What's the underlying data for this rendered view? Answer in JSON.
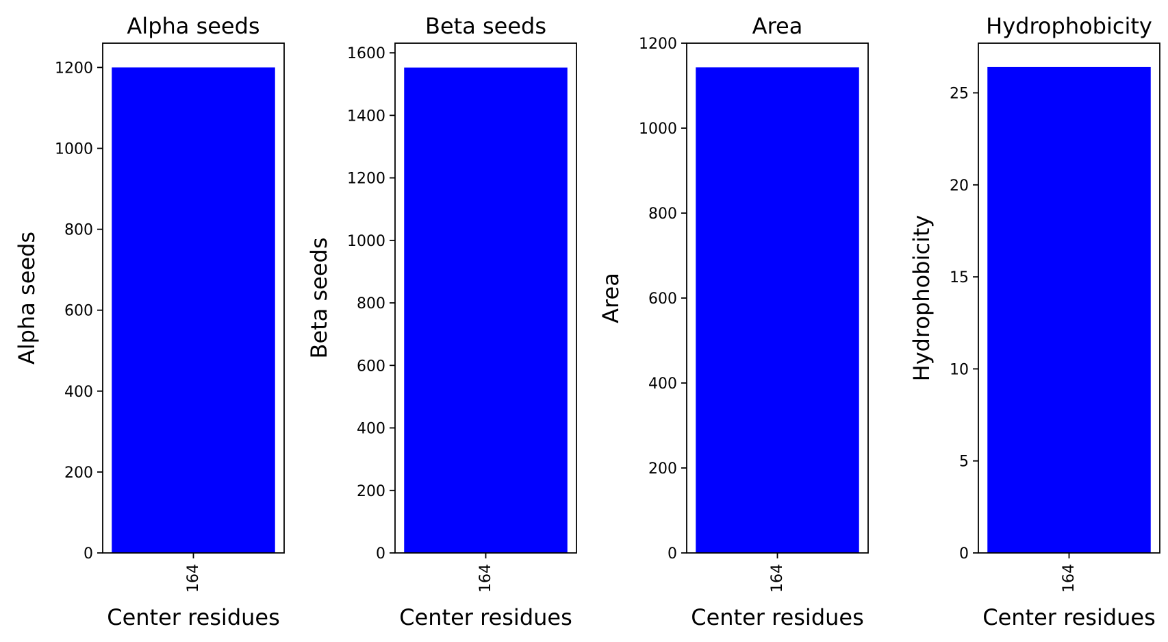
{
  "chart_data": [
    {
      "type": "bar",
      "title": "Alpha seeds",
      "xlabel": "Center residues",
      "ylabel": "Alpha seeds",
      "categories": [
        "164"
      ],
      "values": [
        1200
      ],
      "ylim": [
        0,
        1260
      ],
      "yticks": [
        0,
        200,
        400,
        600,
        800,
        1000,
        1200
      ],
      "bar_color": "#0000ff",
      "grid": false
    },
    {
      "type": "bar",
      "title": "Beta seeds",
      "xlabel": "Center residues",
      "ylabel": "Beta seeds",
      "categories": [
        "164"
      ],
      "values": [
        1553
      ],
      "ylim": [
        0,
        1631
      ],
      "yticks": [
        0,
        200,
        400,
        600,
        800,
        1000,
        1200,
        1400,
        1600
      ],
      "bar_color": "#0000ff",
      "grid": false
    },
    {
      "type": "bar",
      "title": "Area",
      "xlabel": "Center residues",
      "ylabel": "Area",
      "categories": [
        "164"
      ],
      "values": [
        1143
      ],
      "ylim": [
        0,
        1200
      ],
      "yticks": [
        0,
        200,
        400,
        600,
        800,
        1000,
        1200
      ],
      "bar_color": "#0000ff",
      "grid": false
    },
    {
      "type": "bar",
      "title": "Hydrophobicity",
      "xlabel": "Center residues",
      "ylabel": "Hydrophobicity",
      "categories": [
        "164"
      ],
      "values": [
        26.4
      ],
      "ylim": [
        0,
        27.7
      ],
      "yticks": [
        0,
        5,
        10,
        15,
        20,
        25
      ],
      "bar_color": "#0000ff",
      "grid": false
    }
  ]
}
